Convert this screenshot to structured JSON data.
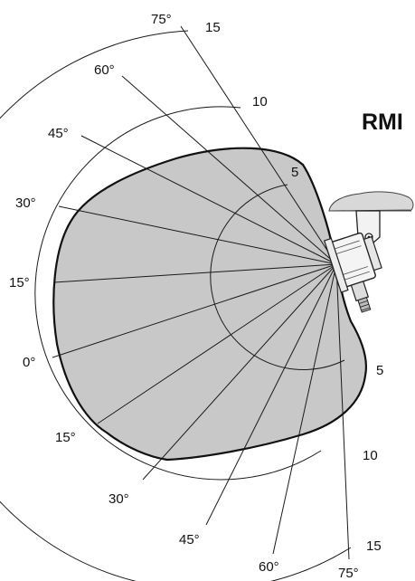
{
  "title": "RMI",
  "angle_labels": {
    "upper": [
      "75°",
      "60°",
      "45°",
      "30°",
      "15°"
    ],
    "center": "0°",
    "lower": [
      "15°",
      "30°",
      "45°",
      "60°",
      "75°"
    ]
  },
  "range_labels": {
    "upper": [
      "15",
      "10",
      "5"
    ],
    "lower": [
      "5",
      "10",
      "15"
    ]
  },
  "device_icon": "radar-sensor-mounted-on-bracket-icon"
}
